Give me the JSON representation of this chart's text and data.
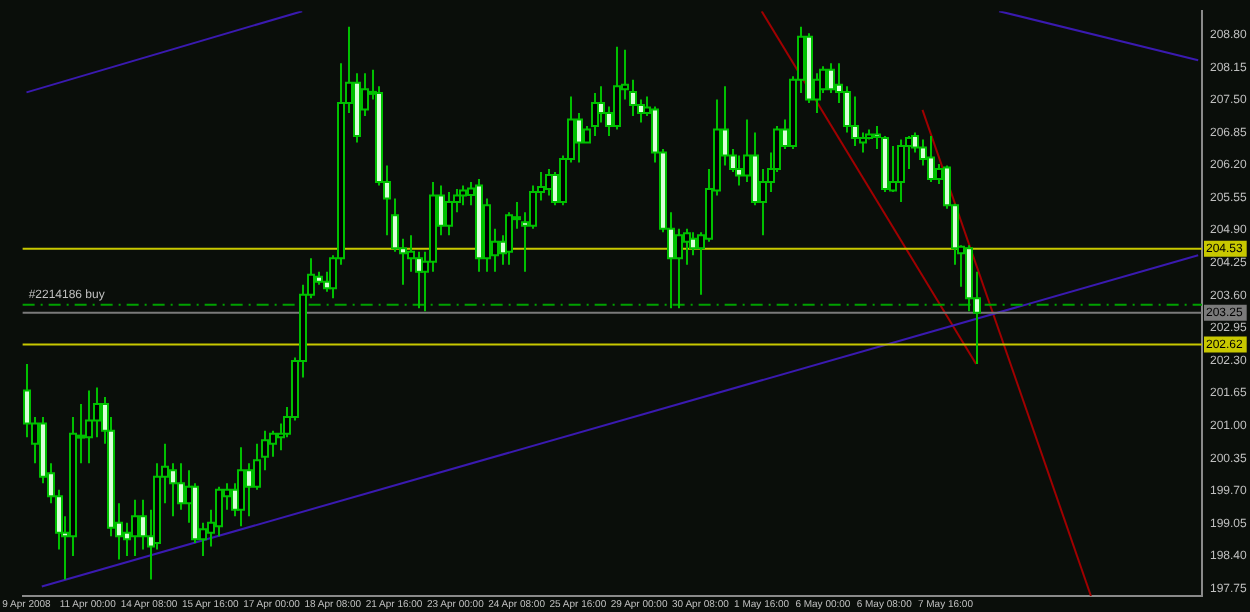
{
  "chart_data": {
    "type": "candlestick",
    "categories": [
      "9 Apr 2008",
      null,
      null,
      null,
      null,
      null,
      null,
      null,
      "11 Apr 00:00",
      null,
      null,
      null,
      null,
      null,
      null,
      null,
      "14 Apr 08:00",
      null,
      null,
      null,
      null,
      null,
      null,
      null,
      "15 Apr 16:00",
      null,
      null,
      null,
      null,
      null,
      null,
      null,
      "17 Apr 00:00",
      null,
      null,
      null,
      null,
      null,
      null,
      null,
      "18 Apr 08:00",
      null,
      null,
      null,
      null,
      null,
      null,
      null,
      "21 Apr 16:00",
      null,
      null,
      null,
      null,
      null,
      null,
      null,
      "23 Apr 00:00",
      null,
      null,
      null,
      null,
      null,
      null,
      null,
      "24 Apr 08:00",
      null,
      null,
      null,
      null,
      null,
      null,
      null,
      "25 Apr 16:00",
      null,
      null,
      null,
      null,
      null,
      null,
      null,
      "29 Apr 00:00",
      null,
      null,
      null,
      null,
      null,
      null,
      null,
      "30 Apr 08:00",
      null,
      null,
      null,
      null,
      null,
      null,
      null,
      "1 May 16:00",
      null,
      null,
      null,
      null,
      null,
      null,
      null,
      "6 May 00:00",
      null,
      null,
      null,
      null,
      null,
      null,
      null,
      "6 May 08:00",
      null,
      null,
      null,
      null,
      null,
      null,
      null,
      "7 May 16:00",
      null,
      null,
      null,
      null,
      null,
      null,
      null,
      null,
      null,
      null,
      null,
      null,
      null,
      null,
      null,
      null,
      null,
      null,
      null,
      null,
      null,
      null,
      null,
      null,
      null,
      null,
      null,
      null,
      null,
      null,
      null,
      null,
      null
    ],
    "color": "#00c000",
    "ohlc": [
      [
        201.7,
        202.23,
        200.77,
        201.04
      ],
      [
        200.64,
        201.17,
        200.25,
        201.04
      ],
      [
        201.04,
        201.17,
        199.85,
        199.98
      ],
      [
        200.05,
        200.25,
        199.45,
        199.59
      ],
      [
        199.59,
        199.72,
        198.53,
        198.86
      ],
      [
        198.86,
        199.19,
        197.93,
        198.79
      ],
      [
        198.79,
        201.17,
        198.4,
        200.84
      ],
      [
        200.77,
        201.43,
        200.25,
        200.8
      ],
      [
        200.77,
        201.7,
        200.25,
        201.1
      ],
      [
        201.1,
        201.76,
        200.77,
        201.43
      ],
      [
        201.43,
        201.57,
        200.64,
        200.9
      ],
      [
        200.9,
        201.17,
        198.79,
        198.96
      ],
      [
        199.06,
        199.45,
        198.33,
        198.79
      ],
      [
        198.86,
        199.06,
        198.4,
        198.73
      ],
      [
        198.79,
        199.52,
        198.4,
        199.19
      ],
      [
        199.19,
        199.52,
        198.53,
        198.79
      ],
      [
        198.79,
        199.32,
        197.93,
        198.59
      ],
      [
        198.66,
        200.25,
        198.53,
        199.98
      ],
      [
        199.98,
        200.64,
        199.45,
        200.18
      ],
      [
        200.11,
        200.25,
        199.19,
        199.85
      ],
      [
        199.85,
        200.25,
        199.32,
        199.45
      ],
      [
        199.45,
        200.11,
        199.06,
        199.78
      ],
      [
        199.78,
        199.85,
        198.66,
        198.73
      ],
      [
        198.73,
        199.06,
        198.4,
        198.93
      ],
      [
        198.86,
        199.32,
        198.59,
        199.06
      ],
      [
        198.99,
        199.78,
        198.79,
        199.72
      ],
      [
        199.59,
        199.85,
        199.32,
        199.72
      ],
      [
        199.72,
        199.85,
        199.19,
        199.32
      ],
      [
        199.32,
        200.57,
        198.99,
        200.11
      ],
      [
        200.11,
        200.25,
        199.19,
        199.78
      ],
      [
        199.78,
        200.64,
        199.72,
        200.31
      ],
      [
        200.38,
        200.9,
        200.11,
        200.71
      ],
      [
        200.64,
        200.9,
        200.38,
        200.84
      ],
      [
        200.77,
        201.04,
        200.51,
        200.84
      ],
      [
        200.84,
        201.37,
        200.77,
        201.17
      ],
      [
        201.17,
        202.36,
        201.1,
        202.29
      ],
      [
        202.29,
        203.81,
        201.96,
        203.61
      ],
      [
        203.61,
        204.34,
        203.54,
        204.01
      ],
      [
        203.97,
        204.07,
        203.81,
        203.87
      ],
      [
        203.87,
        204.07,
        203.67,
        203.74
      ],
      [
        203.74,
        204.4,
        203.54,
        204.34
      ],
      [
        204.34,
        208.23,
        204.21,
        207.44
      ],
      [
        207.44,
        208.96,
        207.24,
        207.84
      ],
      [
        207.84,
        208.03,
        206.65,
        206.78
      ],
      [
        207.31,
        208.03,
        207.18,
        207.71
      ],
      [
        207.66,
        208.1,
        207.51,
        207.64
      ],
      [
        207.64,
        207.77,
        205.79,
        205.86
      ],
      [
        205.86,
        206.19,
        204.8,
        205.53
      ],
      [
        205.2,
        205.53,
        204.47,
        204.54
      ],
      [
        204.54,
        204.73,
        203.81,
        204.44
      ],
      [
        204.34,
        204.8,
        204.07,
        204.47
      ],
      [
        204.34,
        204.47,
        203.34,
        204.07
      ],
      [
        204.07,
        204.47,
        203.28,
        204.27
      ],
      [
        204.27,
        205.86,
        204.07,
        205.59
      ],
      [
        205.59,
        205.79,
        204.8,
        204.99
      ],
      [
        204.99,
        205.66,
        204.8,
        205.46
      ],
      [
        205.46,
        205.72,
        205.26,
        205.59
      ],
      [
        205.59,
        205.79,
        205.4,
        205.69
      ],
      [
        205.6,
        205.86,
        205.4,
        205.73
      ],
      [
        205.79,
        205.92,
        204.07,
        204.34
      ],
      [
        204.34,
        205.53,
        204.07,
        205.4
      ],
      [
        204.4,
        204.93,
        204.07,
        204.67
      ],
      [
        204.67,
        204.8,
        204.21,
        204.44
      ],
      [
        204.47,
        205.26,
        204.21,
        205.2
      ],
      [
        205.13,
        205.46,
        204.93,
        205.16
      ],
      [
        205.06,
        205.26,
        204.07,
        204.99
      ],
      [
        204.99,
        205.79,
        204.93,
        205.66
      ],
      [
        205.66,
        206.06,
        205.49,
        205.76
      ],
      [
        205.72,
        206.12,
        205.59,
        206.0
      ],
      [
        206.0,
        206.06,
        205.4,
        205.46
      ],
      [
        205.46,
        206.39,
        205.4,
        206.32
      ],
      [
        206.32,
        207.57,
        206.25,
        207.11
      ],
      [
        207.11,
        207.24,
        206.25,
        206.65
      ],
      [
        206.65,
        206.98,
        206.65,
        206.91
      ],
      [
        206.98,
        207.64,
        206.78,
        207.44
      ],
      [
        207.44,
        207.77,
        207.05,
        207.24
      ],
      [
        207.24,
        207.37,
        206.78,
        206.98
      ],
      [
        206.98,
        208.56,
        206.91,
        207.77
      ],
      [
        207.71,
        208.5,
        207.51,
        207.8
      ],
      [
        207.66,
        207.9,
        207.18,
        207.4
      ],
      [
        207.4,
        207.51,
        207.05,
        207.24
      ],
      [
        207.24,
        207.57,
        207.18,
        207.35
      ],
      [
        207.31,
        207.37,
        206.25,
        206.45
      ],
      [
        206.45,
        206.52,
        204.86,
        204.93
      ],
      [
        204.93,
        205.26,
        203.34,
        204.34
      ],
      [
        204.34,
        204.93,
        203.34,
        204.8
      ],
      [
        204.67,
        204.93,
        204.21,
        204.84
      ],
      [
        204.73,
        204.86,
        204.4,
        204.54
      ],
      [
        204.54,
        204.86,
        203.61,
        204.8
      ],
      [
        204.73,
        206.12,
        204.67,
        205.72
      ],
      [
        205.69,
        207.51,
        205.59,
        206.91
      ],
      [
        206.91,
        207.77,
        206.19,
        206.39
      ],
      [
        206.39,
        206.52,
        206.06,
        206.12
      ],
      [
        206.12,
        206.39,
        205.79,
        205.99
      ],
      [
        205.99,
        207.11,
        205.86,
        206.39
      ],
      [
        206.39,
        206.85,
        205.4,
        205.46
      ],
      [
        205.46,
        206.12,
        204.8,
        205.86
      ],
      [
        205.86,
        206.45,
        205.66,
        206.12
      ],
      [
        206.12,
        206.98,
        206.06,
        206.91
      ],
      [
        206.91,
        207.11,
        206.52,
        206.58
      ],
      [
        206.58,
        207.97,
        206.52,
        207.9
      ],
      [
        207.9,
        208.96,
        207.64,
        208.76
      ],
      [
        208.76,
        208.83,
        207.44,
        207.51
      ],
      [
        207.51,
        208.03,
        207.24,
        207.9
      ],
      [
        207.71,
        208.17,
        207.64,
        208.1
      ],
      [
        208.1,
        208.23,
        207.64,
        207.71
      ],
      [
        207.8,
        208.23,
        207.44,
        207.66
      ],
      [
        207.66,
        207.77,
        206.85,
        206.98
      ],
      [
        206.98,
        207.57,
        206.58,
        206.74
      ],
      [
        206.65,
        206.85,
        206.45,
        206.74
      ],
      [
        206.74,
        206.91,
        206.71,
        206.81
      ],
      [
        206.81,
        206.98,
        206.52,
        206.76
      ],
      [
        206.74,
        206.78,
        205.66,
        205.72
      ],
      [
        205.69,
        206.58,
        205.66,
        205.86
      ],
      [
        205.86,
        206.71,
        205.46,
        206.58
      ],
      [
        206.58,
        206.78,
        206.12,
        206.74
      ],
      [
        206.78,
        206.85,
        206.45,
        206.55
      ],
      [
        206.55,
        206.71,
        206.19,
        206.32
      ],
      [
        206.35,
        206.78,
        205.86,
        205.92
      ],
      [
        205.92,
        206.22,
        205.82,
        206.12
      ],
      [
        206.15,
        206.19,
        205.33,
        205.4
      ],
      [
        205.4,
        205.43,
        204.21,
        204.54
      ],
      [
        204.44,
        204.6,
        203.77,
        204.57
      ],
      [
        204.54,
        204.6,
        203.28,
        203.54
      ],
      [
        203.54,
        204.07,
        202.23,
        203.25
      ],
      null,
      null,
      null,
      null,
      null,
      null,
      null,
      null,
      null,
      null,
      null,
      null,
      null,
      null,
      null,
      null,
      null,
      null,
      null,
      null,
      null,
      null,
      null,
      null,
      null,
      null,
      null,
      null,
      null
    ],
    "series": [
      {
        "type": "line",
        "color": "#3a1ab0",
        "values": [
          207.65,
          null,
          null,
          null,
          null,
          null,
          null,
          null,
          null,
          null,
          null,
          null,
          null,
          null,
          null,
          null,
          null,
          null,
          null,
          null,
          null,
          null,
          null,
          null,
          null,
          null,
          null,
          null,
          null,
          null,
          null,
          null,
          null,
          null,
          null,
          null,
          209.27,
          null,
          null,
          null,
          null,
          null,
          null,
          null,
          null,
          null,
          null,
          null,
          null,
          null,
          null,
          null,
          null,
          null,
          null,
          null,
          null,
          null,
          null,
          null,
          null,
          null,
          null,
          null,
          null,
          null,
          null,
          null,
          null,
          null,
          null,
          null,
          null,
          null,
          null,
          null,
          null,
          null,
          null,
          null,
          null,
          null,
          null,
          null,
          null,
          null,
          null,
          null,
          null,
          null,
          null,
          null,
          null,
          null,
          null,
          null,
          null,
          null,
          null,
          null,
          null,
          null,
          null,
          null,
          null,
          null,
          null,
          null,
          null,
          null,
          null,
          null,
          null,
          null,
          null,
          null,
          null,
          null,
          null,
          null,
          null,
          null,
          null,
          null,
          null,
          null,
          null,
          null,
          null,
          null,
          null,
          null,
          null,
          null,
          null,
          null,
          null,
          null,
          null,
          null,
          null,
          null,
          null,
          null,
          null,
          null,
          null,
          null,
          null,
          null,
          null,
          null,
          null,
          null
        ]
      },
      {
        "type": "line",
        "color": "#3a1ab0",
        "values": [
          null,
          null,
          null,
          null,
          null,
          null,
          null,
          null,
          null,
          null,
          null,
          null,
          null,
          null,
          null,
          null,
          null,
          null,
          null,
          null,
          null,
          null,
          null,
          null,
          null,
          null,
          null,
          null,
          null,
          null,
          null,
          null,
          null,
          null,
          null,
          null,
          null,
          null,
          null,
          null,
          null,
          null,
          null,
          null,
          null,
          null,
          null,
          null,
          null,
          null,
          null,
          null,
          null,
          null,
          null,
          null,
          null,
          null,
          null,
          null,
          null,
          null,
          null,
          null,
          null,
          null,
          null,
          null,
          null,
          null,
          null,
          null,
          null,
          null,
          null,
          null,
          null,
          null,
          null,
          null,
          null,
          null,
          null,
          null,
          null,
          null,
          null,
          null,
          null,
          null,
          null,
          null,
          null,
          null,
          null,
          null,
          null,
          null,
          null,
          null,
          null,
          null,
          null,
          null,
          null,
          null,
          null,
          null,
          null,
          null,
          null,
          null,
          null,
          null,
          null,
          null,
          null,
          null,
          null,
          null,
          null,
          null,
          null,
          null,
          null,
          null,
          null,
          209.27,
          null,
          null,
          null,
          null,
          null,
          null,
          null,
          null,
          null,
          null,
          null,
          null,
          null,
          null,
          null,
          null,
          null,
          null,
          null,
          null,
          null,
          null,
          null,
          null,
          null,
          208.29
        ]
      },
      {
        "type": "line",
        "color": "#3a1ab0",
        "values": [
          null,
          null,
          197.79,
          null,
          null,
          null,
          null,
          null,
          null,
          null,
          null,
          null,
          null,
          null,
          null,
          null,
          null,
          null,
          null,
          null,
          null,
          null,
          null,
          null,
          null,
          null,
          null,
          null,
          null,
          null,
          null,
          null,
          null,
          null,
          null,
          null,
          null,
          null,
          null,
          null,
          null,
          null,
          null,
          null,
          null,
          null,
          null,
          null,
          null,
          null,
          null,
          null,
          null,
          null,
          null,
          null,
          null,
          null,
          null,
          null,
          null,
          null,
          null,
          null,
          null,
          null,
          null,
          null,
          null,
          null,
          null,
          null,
          null,
          null,
          null,
          null,
          null,
          null,
          null,
          null,
          null,
          null,
          null,
          null,
          null,
          null,
          null,
          null,
          null,
          null,
          null,
          null,
          null,
          null,
          null,
          null,
          null,
          null,
          null,
          null,
          null,
          null,
          null,
          null,
          null,
          null,
          null,
          null,
          null,
          null,
          null,
          null,
          null,
          null,
          null,
          null,
          null,
          null,
          null,
          null,
          null,
          null,
          null,
          null,
          null,
          null,
          null,
          null,
          null,
          null,
          null,
          null,
          null,
          null,
          null,
          null,
          null,
          null,
          null,
          null,
          null,
          null,
          null,
          null,
          null,
          null,
          null,
          null,
          null,
          null,
          null,
          null,
          null,
          204.4
        ]
      },
      {
        "type": "line",
        "color": "#a00000",
        "values": [
          null,
          null,
          null,
          null,
          null,
          null,
          null,
          null,
          null,
          null,
          null,
          null,
          null,
          null,
          null,
          null,
          null,
          null,
          null,
          null,
          null,
          null,
          null,
          null,
          null,
          null,
          null,
          null,
          null,
          null,
          null,
          null,
          null,
          null,
          null,
          null,
          null,
          null,
          null,
          null,
          null,
          null,
          null,
          null,
          null,
          null,
          null,
          null,
          null,
          null,
          null,
          null,
          null,
          null,
          null,
          null,
          null,
          null,
          null,
          null,
          null,
          null,
          null,
          null,
          null,
          null,
          null,
          null,
          null,
          null,
          null,
          null,
          null,
          null,
          null,
          null,
          null,
          null,
          null,
          null,
          null,
          null,
          null,
          null,
          null,
          null,
          null,
          null,
          null,
          null,
          null,
          null,
          null,
          null,
          null,
          null,
          209.27,
          null,
          null,
          null,
          null,
          null,
          null,
          null,
          null,
          null,
          null,
          null,
          null,
          null,
          null,
          null,
          null,
          null,
          null,
          null,
          null,
          null,
          null,
          null,
          null,
          null,
          null,
          null,
          202.23,
          null,
          null,
          null,
          null,
          null,
          null,
          null,
          null,
          null,
          null,
          null,
          null,
          null,
          null,
          null,
          null,
          null,
          null,
          null,
          null,
          null,
          null,
          null,
          null,
          null,
          null,
          null,
          null,
          null
        ]
      },
      {
        "type": "line",
        "color": "#a00000",
        "values": [
          null,
          null,
          null,
          null,
          null,
          null,
          null,
          null,
          null,
          null,
          null,
          null,
          null,
          null,
          null,
          null,
          null,
          null,
          null,
          null,
          null,
          null,
          null,
          null,
          null,
          null,
          null,
          null,
          null,
          null,
          null,
          null,
          null,
          null,
          null,
          null,
          null,
          null,
          null,
          null,
          null,
          null,
          null,
          null,
          null,
          null,
          null,
          null,
          null,
          null,
          null,
          null,
          null,
          null,
          null,
          null,
          null,
          null,
          null,
          null,
          null,
          null,
          null,
          null,
          null,
          null,
          null,
          null,
          null,
          null,
          null,
          null,
          null,
          null,
          null,
          null,
          null,
          null,
          null,
          null,
          null,
          null,
          null,
          null,
          null,
          null,
          null,
          null,
          null,
          null,
          null,
          null,
          null,
          null,
          null,
          null,
          null,
          null,
          null,
          null,
          null,
          null,
          null,
          null,
          null,
          null,
          null,
          null,
          null,
          null,
          null,
          null,
          null,
          null,
          null,
          null,
          null,
          207.3,
          null,
          null,
          null,
          null,
          null,
          null,
          null,
          null,
          null,
          null,
          null,
          null,
          null,
          null,
          null,
          null,
          null,
          null,
          null,
          null,
          null,
          197.6,
          null,
          null,
          null,
          null,
          null,
          null,
          null,
          null,
          null,
          null,
          null,
          null,
          null,
          null
        ]
      }
    ],
    "ylim": [
      197.6,
      209.27
    ],
    "yticks": [
      {
        "value": 197.75,
        "label": "197.75"
      },
      {
        "value": 198.4,
        "label": "198.40"
      },
      {
        "value": 199.05,
        "label": "199.05"
      },
      {
        "value": 199.7,
        "label": "199.70"
      },
      {
        "value": 200.35,
        "label": "200.35"
      },
      {
        "value": 201.0,
        "label": "201.00"
      },
      {
        "value": 201.65,
        "label": "201.65"
      },
      {
        "value": 202.3,
        "label": "202.30"
      },
      {
        "value": 202.95,
        "label": "202.95"
      },
      {
        "value": 203.6,
        "label": "203.60"
      },
      {
        "value": 204.25,
        "label": "204.25"
      },
      {
        "value": 204.9,
        "label": "204.90"
      },
      {
        "value": 205.55,
        "label": "205.55"
      },
      {
        "value": 206.2,
        "label": "206.20"
      },
      {
        "value": 206.85,
        "label": "206.85"
      },
      {
        "value": 207.5,
        "label": "207.50"
      },
      {
        "value": 208.15,
        "label": "208.15"
      },
      {
        "value": 208.8,
        "label": "208.80"
      }
    ],
    "ref_lines": [
      {
        "axis": "y",
        "value": 204.53,
        "label": "204.53",
        "color": "#c8c800"
      },
      {
        "axis": "y",
        "value": 202.62,
        "label": "202.62",
        "color": "#c8c800"
      },
      {
        "axis": "y",
        "value": 203.25,
        "label": "203.25",
        "color": "#7a7a7a"
      },
      {
        "axis": "y",
        "value": 203.41,
        "label": "#2214186 buy",
        "color": "#00a000",
        "line_style": "dashed"
      }
    ],
    "grid": false,
    "legend": false
  }
}
